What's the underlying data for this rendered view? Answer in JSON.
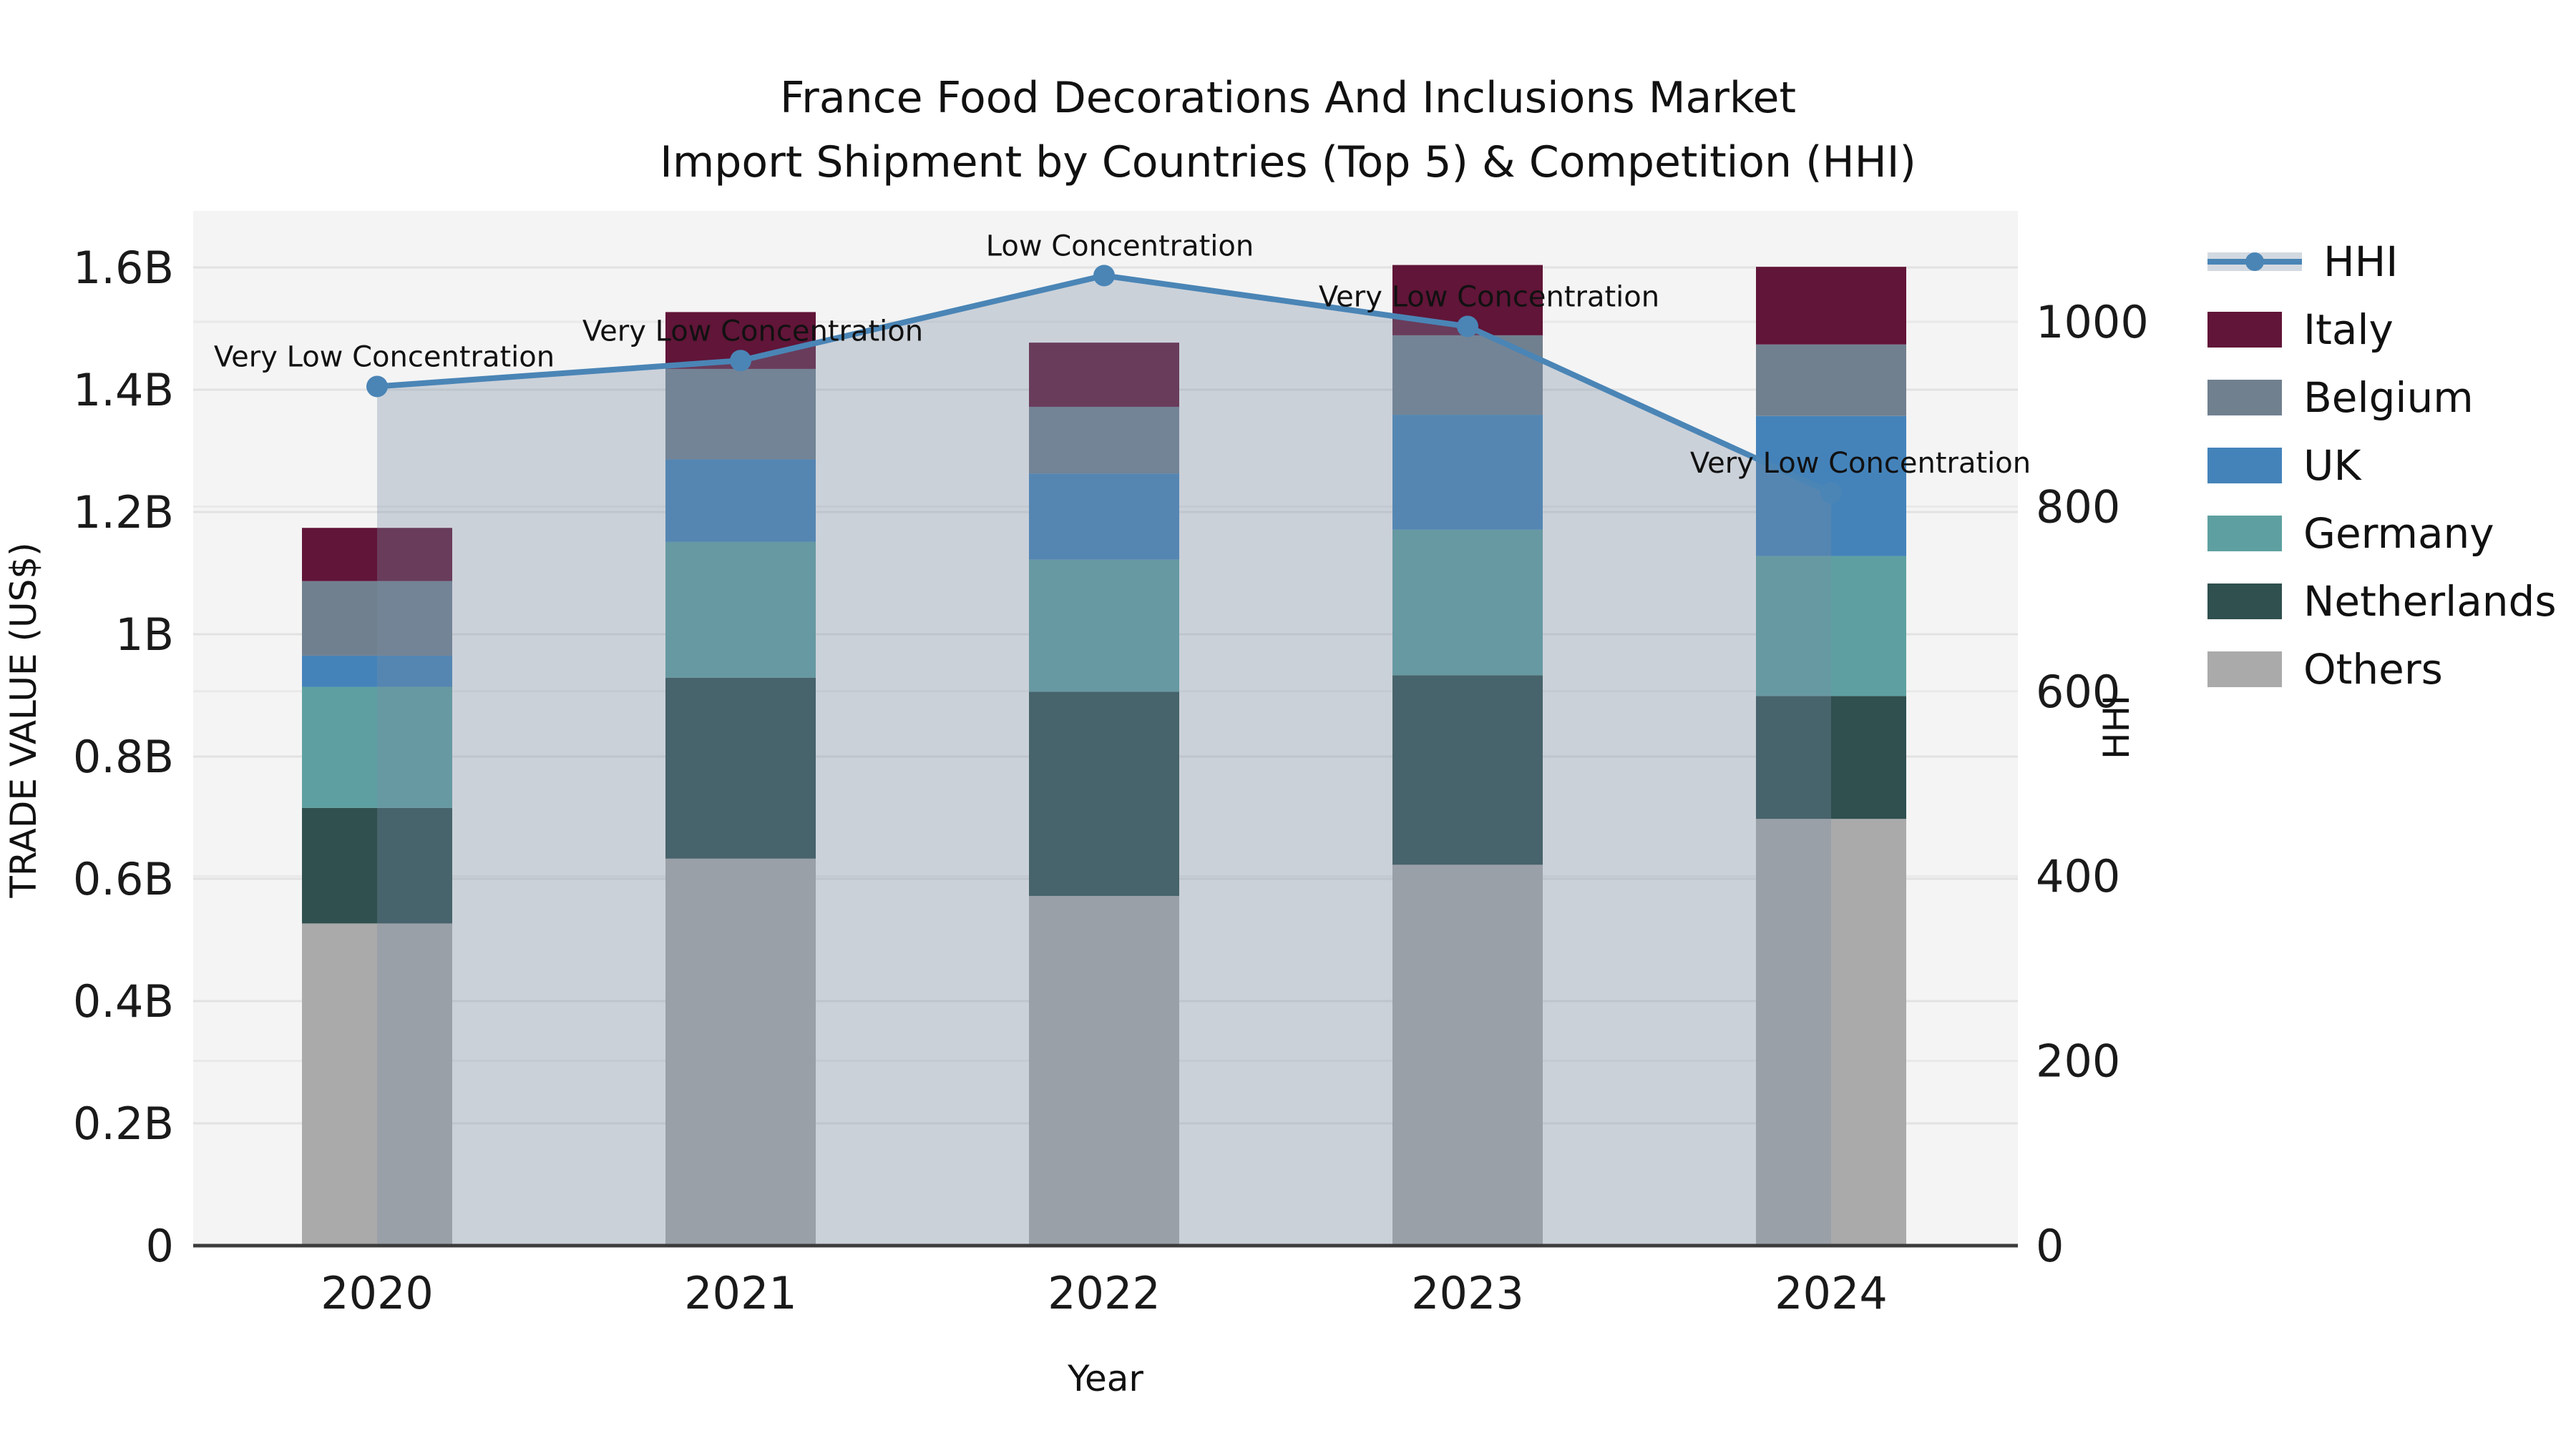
{
  "header": {
    "line1": "France Food Decorations And Inclusions Market",
    "line2": "Import Shipment by Countries (Top 5) & Competition (HHI)"
  },
  "chart_data": {
    "type": "combo: stacked-bar (left axis) + line-with-area (right axis)",
    "title": "France Food Decorations And Inclusions Market Import Shipment by Countries (Top 5) & Competition (HHI)",
    "xlabel": "Year",
    "ylabel_left": "TRADE VALUE (US$)",
    "ylabel_right": "HHI",
    "categories": [
      "2020",
      "2021",
      "2022",
      "2023",
      "2024"
    ],
    "bar_unit": "billion US$",
    "series": [
      {
        "name": "Italy",
        "color": "#611538",
        "values": [
          0.087,
          0.093,
          0.105,
          0.115,
          0.127
        ]
      },
      {
        "name": "Belgium",
        "color": "#71808F",
        "values": [
          0.122,
          0.148,
          0.109,
          0.13,
          0.117
        ]
      },
      {
        "name": "UK",
        "color": "#4483BA",
        "values": [
          0.051,
          0.135,
          0.141,
          0.188,
          0.229
        ]
      },
      {
        "name": "Germany",
        "color": "#5EA0A1",
        "values": [
          0.198,
          0.222,
          0.216,
          0.238,
          0.229
        ]
      },
      {
        "name": "Netherlands",
        "color": "#2F504F",
        "values": [
          0.189,
          0.296,
          0.334,
          0.31,
          0.201
        ]
      },
      {
        "name": "Others",
        "color": "#AAAAAA",
        "values": [
          0.527,
          0.633,
          0.572,
          0.623,
          0.698
        ]
      }
    ],
    "stack_order_bottom_to_top": [
      "Others",
      "Netherlands",
      "Germany",
      "UK",
      "Belgium",
      "Italy"
    ],
    "bar_totals_billion": [
      1.174,
      1.527,
      1.477,
      1.604,
      1.601
    ],
    "hhi": {
      "name": "HHI",
      "line_color": "#4A85B6",
      "area_fill": "rgba(122,141,165,0.33)",
      "values": [
        930,
        958,
        1050,
        995,
        815
      ],
      "annotations": [
        "Very Low Concentration",
        "Very Low Concentration",
        "Low Concentration",
        "Very Low Concentration",
        "Very Low Concentration"
      ]
    },
    "axes": {
      "yticks_left": {
        "labels": [
          "0",
          "0.2B",
          "0.4B",
          "0.6B",
          "0.8B",
          "1B",
          "1.2B",
          "1.4B",
          "1.6B"
        ],
        "values": [
          0,
          0.2,
          0.4,
          0.6,
          0.8,
          1.0,
          1.2,
          1.4,
          1.6
        ],
        "max": 1.69
      },
      "yticks_right": {
        "labels": [
          "0",
          "200",
          "400",
          "600",
          "800",
          "1000"
        ],
        "values": [
          0,
          200,
          400,
          600,
          800,
          1000
        ],
        "max": 1120
      },
      "grid": true,
      "plot_background": "#f4f4f4",
      "gridline_color": "#e2e2e2"
    },
    "legend": [
      {
        "label": "HHI",
        "swatch": "line"
      },
      {
        "label": "Italy",
        "swatch": "#611538"
      },
      {
        "label": "Belgium",
        "swatch": "#71808F"
      },
      {
        "label": "UK",
        "swatch": "#4483BA"
      },
      {
        "label": "Germany",
        "swatch": "#5EA0A1"
      },
      {
        "label": "Netherlands",
        "swatch": "#2F504F"
      },
      {
        "label": "Others",
        "swatch": "#AAAAAA"
      }
    ],
    "legend_position": "right"
  }
}
